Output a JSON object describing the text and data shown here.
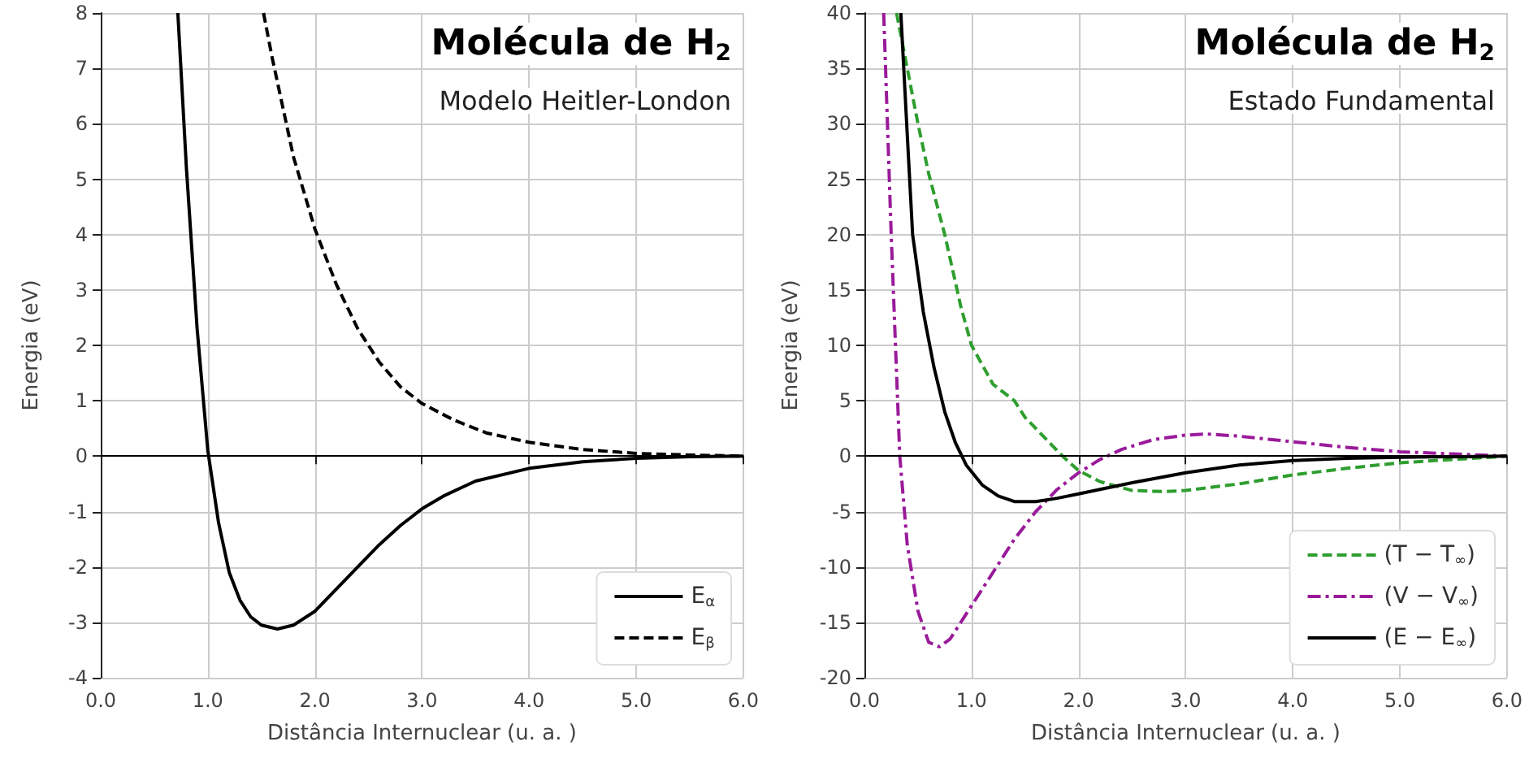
{
  "chart_data": [
    {
      "type": "line",
      "title": "Molécula de H$_{2}$",
      "subtitle": "Modelo Heitler-London",
      "xlabel": "Distância Internuclear (u. a. )",
      "ylabel": "Energia (eV)",
      "xlim": [
        0,
        6
      ],
      "ylim": [
        -4,
        8
      ],
      "xticks": [
        {
          "value": 0,
          "label": "0.0"
        },
        {
          "value": 1,
          "label": "1.0"
        },
        {
          "value": 2,
          "label": "2.0"
        },
        {
          "value": 3,
          "label": "3.0"
        },
        {
          "value": 4,
          "label": "4.0"
        },
        {
          "value": 5,
          "label": "5.0"
        },
        {
          "value": 6,
          "label": "6.0"
        }
      ],
      "yticks": [
        -4,
        -3,
        -2,
        -1,
        0,
        1,
        2,
        3,
        4,
        5,
        6,
        7,
        8
      ],
      "grid": true,
      "legend": "bottom right",
      "ref_lines": [
        {
          "axis": "y",
          "value": 0,
          "color": "#000000"
        }
      ],
      "series": [
        {
          "name": "E$_{α}$",
          "color": "#000000",
          "line_style": "solid",
          "x": [
            0.72,
            0.8,
            0.9,
            1.0,
            1.1,
            1.2,
            1.3,
            1.4,
            1.5,
            1.65,
            1.8,
            2.0,
            2.2,
            2.4,
            2.6,
            2.8,
            3.0,
            3.2,
            3.5,
            4.0,
            4.5,
            5.0,
            5.5,
            6.0
          ],
          "values": [
            8,
            5.2,
            2.3,
            0.1,
            -1.2,
            -2.1,
            -2.6,
            -2.9,
            -3.05,
            -3.12,
            -3.05,
            -2.8,
            -2.4,
            -2.0,
            -1.6,
            -1.25,
            -0.95,
            -0.72,
            -0.45,
            -0.22,
            -0.1,
            -0.04,
            -0.01,
            0
          ]
        },
        {
          "name": "E$_{β}$",
          "color": "#000000",
          "line_style": "dashed",
          "x": [
            1.52,
            1.6,
            1.8,
            2.0,
            2.2,
            2.4,
            2.6,
            2.8,
            3.0,
            3.3,
            3.6,
            4.0,
            4.5,
            5.0,
            5.5,
            6.0
          ],
          "values": [
            8,
            7.2,
            5.4,
            4.1,
            3.1,
            2.3,
            1.7,
            1.25,
            0.95,
            0.65,
            0.42,
            0.25,
            0.12,
            0.05,
            0.02,
            0
          ]
        }
      ]
    },
    {
      "type": "line",
      "title": "Molécula de H$_{2}$",
      "subtitle": "Estado Fundamental",
      "xlabel": "Distância Internuclear (u. a. )",
      "ylabel": "Energia (eV)",
      "xlim": [
        0,
        6
      ],
      "ylim": [
        -20,
        40
      ],
      "xticks": [
        {
          "value": 0,
          "label": "0.0"
        },
        {
          "value": 1,
          "label": "1.0"
        },
        {
          "value": 2,
          "label": "2.0"
        },
        {
          "value": 3,
          "label": "3.0"
        },
        {
          "value": 4,
          "label": "4.0"
        },
        {
          "value": 5,
          "label": "5.0"
        },
        {
          "value": 6,
          "label": "6.0"
        }
      ],
      "yticks": [
        -20,
        -15,
        -10,
        -5,
        0,
        5,
        10,
        15,
        20,
        25,
        30,
        35,
        40
      ],
      "grid": true,
      "legend": "bottom right",
      "ref_lines": [
        {
          "axis": "y",
          "value": 0,
          "color": "#000000"
        }
      ],
      "series": [
        {
          "name": "(T − T$_{∞}$)",
          "color": "#2e9e2e",
          "line_style": "dashed",
          "x": [
            0.3,
            0.4,
            0.5,
            0.6,
            0.75,
            0.9,
            1.0,
            1.2,
            1.4,
            1.5,
            1.7,
            1.85,
            2.0,
            2.2,
            2.5,
            2.8,
            3.0,
            3.5,
            4.0,
            4.5,
            5.0,
            5.5,
            6.0
          ],
          "values": [
            40,
            35,
            30,
            25.5,
            20,
            13.5,
            10,
            6.5,
            5,
            3.5,
            1.5,
            0,
            -1.3,
            -2.3,
            -3.1,
            -3.2,
            -3.1,
            -2.5,
            -1.7,
            -1.1,
            -0.6,
            -0.3,
            0
          ]
        },
        {
          "name": "(V − V$_{∞}$)",
          "color": "#9a1a9a",
          "line_style": "dashdot",
          "x": [
            0.18,
            0.25,
            0.33,
            0.4,
            0.5,
            0.6,
            0.7,
            0.8,
            1.0,
            1.2,
            1.4,
            1.6,
            1.8,
            2.0,
            2.2,
            2.4,
            2.7,
            3.0,
            3.2,
            3.5,
            4.0,
            4.5,
            5.0,
            5.5,
            6.0
          ],
          "values": [
            40,
            20,
            0,
            -8,
            -14,
            -16.8,
            -17.2,
            -16.5,
            -13.5,
            -10.5,
            -7.5,
            -5,
            -3,
            -1.5,
            -0.3,
            0.6,
            1.5,
            1.9,
            2.0,
            1.8,
            1.3,
            0.8,
            0.4,
            0.2,
            0
          ]
        },
        {
          "name": "(E − E$_{∞}$)",
          "color": "#000000",
          "line_style": "solid",
          "x": [
            0.34,
            0.4,
            0.45,
            0.55,
            0.65,
            0.75,
            0.85,
            0.95,
            1.1,
            1.25,
            1.4,
            1.6,
            1.8,
            2.0,
            2.5,
            3.0,
            3.5,
            4.0,
            4.5,
            5.0,
            6.0
          ],
          "values": [
            40,
            29,
            20,
            13,
            8,
            4,
            1.2,
            -0.8,
            -2.6,
            -3.6,
            -4.1,
            -4.1,
            -3.8,
            -3.4,
            -2.4,
            -1.5,
            -0.8,
            -0.4,
            -0.2,
            -0.1,
            0
          ]
        }
      ]
    }
  ]
}
